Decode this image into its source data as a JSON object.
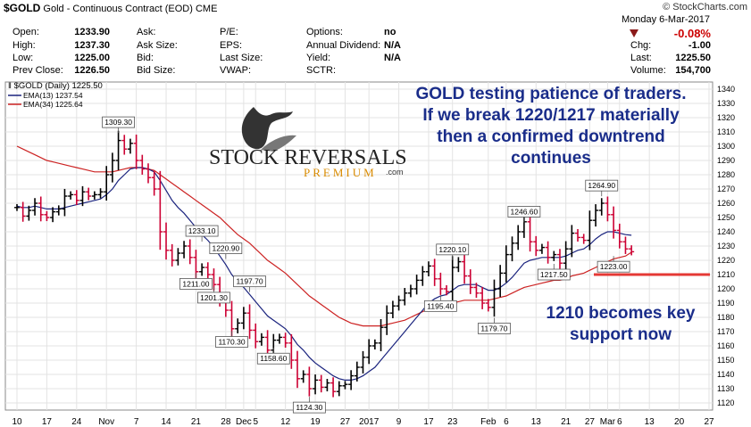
{
  "header": {
    "symbol": "$GOLD",
    "description": "Gold - Continuous Contract (EOD)",
    "exchange": "CME",
    "source": "© StockCharts.com",
    "date": "Monday  6-Mar-2017",
    "change_pct": "-0.08%",
    "quote_left": [
      {
        "label": "Open:",
        "value": "1233.90"
      },
      {
        "label": "High:",
        "value": "1237.30"
      },
      {
        "label": "Low:",
        "value": "1225.00"
      },
      {
        "label": "Prev Close:",
        "value": "1226.50"
      }
    ],
    "quote_mid": [
      "Ask:",
      "Ask Size:",
      "Bid:",
      "Bid Size:"
    ],
    "quote_mid2": [
      "P/E:",
      "EPS:",
      "Last Size:",
      "VWAP:"
    ],
    "quote_mid3": [
      {
        "label": "Options:",
        "value": "no"
      },
      {
        "label": "Annual Dividend:",
        "value": "N/A"
      },
      {
        "label": "Yield:",
        "value": "N/A"
      },
      {
        "label": "SCTR:",
        "value": ""
      }
    ],
    "quote_right": [
      {
        "label": "Chg:",
        "value": "-1.00"
      },
      {
        "label": "Last:",
        "value": "1225.50"
      },
      {
        "label": "Volume:",
        "value": "154,700"
      }
    ]
  },
  "legend": {
    "main": "$GOLD (Daily) 1225.50",
    "ema13": "EMA(13) 1237.54",
    "ema34": "EMA(34) 1225.64"
  },
  "logo": {
    "line1": "STOCK REVERSALS",
    "line2": "PREMIUM",
    "dotcom": ".com"
  },
  "annotations": {
    "top": [
      "GOLD testing patience of traders.",
      "If we break 1220/1217 materially",
      "then a confirmed downtrend",
      "continues"
    ],
    "bottom": [
      "1210 becomes key",
      "support now"
    ]
  },
  "colors": {
    "up": "#000000",
    "down": "#cc0033",
    "ema13": "#1a237e",
    "ema34": "#cc2222",
    "support": "#e53935",
    "annotation": "#1a2d8a"
  },
  "chart_data": {
    "type": "ohlc",
    "title": "$GOLD (Daily) 1225.50",
    "ylim": [
      1115,
      1345
    ],
    "y_ticks": [
      1120,
      1130,
      1140,
      1150,
      1160,
      1170,
      1180,
      1190,
      1200,
      1210,
      1220,
      1230,
      1240,
      1250,
      1260,
      1270,
      1280,
      1290,
      1300,
      1310,
      1320,
      1330,
      1340
    ],
    "x_ticks": [
      {
        "label": "10",
        "day": 0
      },
      {
        "label": "17",
        "day": 5
      },
      {
        "label": "24",
        "day": 10
      },
      {
        "label": "Nov",
        "day": 15
      },
      {
        "label": "7",
        "day": 20
      },
      {
        "label": "14",
        "day": 25
      },
      {
        "label": "21",
        "day": 30
      },
      {
        "label": "28",
        "day": 35
      },
      {
        "label": "Dec",
        "day": 38
      },
      {
        "label": "5",
        "day": 40
      },
      {
        "label": "12",
        "day": 45
      },
      {
        "label": "19",
        "day": 50
      },
      {
        "label": "27",
        "day": 55
      },
      {
        "label": "2017",
        "day": 59
      },
      {
        "label": "9",
        "day": 64
      },
      {
        "label": "17",
        "day": 69
      },
      {
        "label": "23",
        "day": 73
      },
      {
        "label": "Feb",
        "day": 79
      },
      {
        "label": "6",
        "day": 82
      },
      {
        "label": "13",
        "day": 87
      },
      {
        "label": "21",
        "day": 92
      },
      {
        "label": "27",
        "day": 96
      },
      {
        "label": "Mar",
        "day": 99
      },
      {
        "label": "6",
        "day": 101
      },
      {
        "label": "13",
        "day": 106
      },
      {
        "label": "20",
        "day": 111
      },
      {
        "label": "27",
        "day": 116
      }
    ],
    "closes": [
      1257,
      1251,
      1255,
      1260,
      1252,
      1250,
      1254,
      1256,
      1265,
      1266,
      1262,
      1268,
      1265,
      1266,
      1268,
      1280,
      1290,
      1304,
      1298,
      1302,
      1290,
      1284,
      1278,
      1270,
      1240,
      1227,
      1220,
      1225,
      1230,
      1222,
      1212,
      1215,
      1210,
      1203,
      1193,
      1185,
      1172,
      1176,
      1183,
      1171,
      1163,
      1166,
      1157,
      1164,
      1166,
      1162,
      1150,
      1137,
      1140,
      1130,
      1136,
      1131,
      1134,
      1128,
      1132,
      1133,
      1139,
      1145,
      1152,
      1160,
      1162,
      1173,
      1183,
      1188,
      1192,
      1197,
      1200,
      1206,
      1212,
      1216,
      1207,
      1200,
      1198,
      1215,
      1219,
      1209,
      1201,
      1197,
      1190,
      1187,
      1200,
      1211,
      1224,
      1232,
      1240,
      1247,
      1233,
      1227,
      1229,
      1222,
      1224,
      1218,
      1228,
      1239,
      1236,
      1234,
      1248,
      1255,
      1260,
      1252,
      1241,
      1233,
      1228,
      1226
    ],
    "ema13": [
      1258,
      1257,
      1257,
      1258,
      1257,
      1256,
      1256,
      1256,
      1257,
      1258,
      1259,
      1260,
      1261,
      1262,
      1263,
      1266,
      1270,
      1276,
      1280,
      1284,
      1285,
      1285,
      1284,
      1282,
      1276,
      1269,
      1262,
      1257,
      1253,
      1248,
      1243,
      1238,
      1234,
      1229,
      1223,
      1217,
      1210,
      1205,
      1201,
      1196,
      1191,
      1186,
      1181,
      1178,
      1175,
      1172,
      1167,
      1161,
      1157,
      1152,
      1148,
      1145,
      1142,
      1139,
      1137,
      1136,
      1136,
      1137,
      1139,
      1142,
      1145,
      1150,
      1155,
      1160,
      1165,
      1170,
      1175,
      1180,
      1185,
      1190,
      1193,
      1195,
      1196,
      1199,
      1202,
      1203,
      1203,
      1203,
      1201,
      1199,
      1199,
      1201,
      1204,
      1208,
      1213,
      1218,
      1220,
      1221,
      1222,
      1222,
      1222,
      1222,
      1223,
      1225,
      1227,
      1228,
      1231,
      1235,
      1238,
      1240,
      1240,
      1239,
      1238,
      1237.54
    ],
    "ema34": [
      1300,
      1298,
      1296,
      1294,
      1292,
      1290,
      1289,
      1288,
      1287,
      1286,
      1285,
      1284,
      1283,
      1282,
      1282,
      1282,
      1282,
      1283,
      1284,
      1285,
      1285,
      1285,
      1284,
      1283,
      1280,
      1277,
      1274,
      1271,
      1268,
      1265,
      1262,
      1259,
      1256,
      1253,
      1250,
      1246,
      1242,
      1238,
      1235,
      1232,
      1228,
      1224,
      1220,
      1217,
      1214,
      1211,
      1207,
      1203,
      1199,
      1195,
      1192,
      1189,
      1186,
      1183,
      1180,
      1178,
      1176,
      1175,
      1174,
      1174,
      1174,
      1174,
      1175,
      1176,
      1177,
      1178,
      1180,
      1182,
      1184,
      1186,
      1187,
      1188,
      1189,
      1190,
      1191,
      1192,
      1192,
      1192,
      1192,
      1192,
      1193,
      1194,
      1195,
      1197,
      1199,
      1201,
      1202,
      1203,
      1204,
      1205,
      1206,
      1206,
      1207,
      1209,
      1210,
      1211,
      1213,
      1215,
      1217,
      1219,
      1221,
      1222,
      1223,
      1225.64
    ],
    "callouts": [
      {
        "day": 17,
        "value": 1309.3,
        "pos": "above"
      },
      {
        "day": 30,
        "value": 1211.0,
        "pos": "below"
      },
      {
        "day": 31,
        "value": 1233.1,
        "pos": "above"
      },
      {
        "day": 35,
        "value": 1220.9,
        "pos": "above"
      },
      {
        "day": 33,
        "value": 1201.3,
        "pos": "below"
      },
      {
        "day": 39,
        "value": 1197.7,
        "pos": "above"
      },
      {
        "day": 36,
        "value": 1170.3,
        "pos": "below"
      },
      {
        "day": 43,
        "value": 1158.6,
        "pos": "below"
      },
      {
        "day": 49,
        "value": 1124.3,
        "pos": "below"
      },
      {
        "day": 71,
        "value": 1195.4,
        "pos": "below"
      },
      {
        "day": 73,
        "value": 1220.1,
        "pos": "above"
      },
      {
        "day": 80,
        "value": 1179.7,
        "pos": "below"
      },
      {
        "day": 85,
        "value": 1246.6,
        "pos": "above"
      },
      {
        "day": 90,
        "value": 1217.5,
        "pos": "below"
      },
      {
        "day": 98,
        "value": 1264.9,
        "pos": "above"
      },
      {
        "day": 100,
        "value": 1223.0,
        "pos": "below"
      }
    ],
    "support_level": 1210
  }
}
